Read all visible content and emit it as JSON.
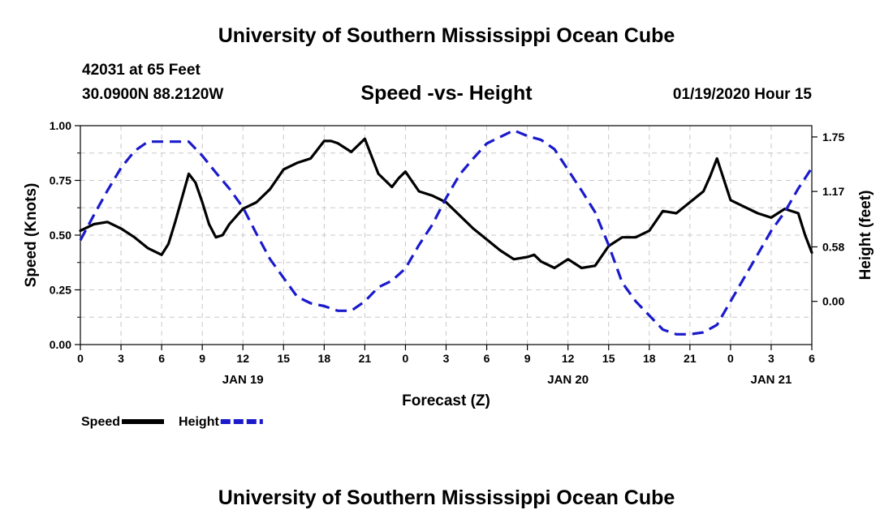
{
  "header": {
    "title": "University of Southern Mississippi Ocean Cube",
    "station": "42031 at 65 Feet",
    "coordinates": "30.0900N 88.2120W",
    "subtitle": "Speed -vs- Height",
    "datetime": "01/19/2020 Hour 15"
  },
  "footer": {
    "title": "University of Southern Mississippi Ocean Cube"
  },
  "chart_data": {
    "type": "line",
    "title": "Speed -vs- Height",
    "xlabel": "Forecast (Z)",
    "ylabel_left": "Speed (Knots)",
    "ylabel_right": "Height (feet)",
    "x_range": [
      0,
      54
    ],
    "ylim_left": [
      0,
      1.0
    ],
    "ylim_right": [
      -0.46,
      1.87
    ],
    "left_ticks": [
      "0.00",
      "0.25",
      "0.50",
      "0.75",
      "1.00"
    ],
    "right_ticks": [
      {
        "value": 0.0,
        "label": "0.00"
      },
      {
        "value": 0.58,
        "label": "0.58"
      },
      {
        "value": 1.17,
        "label": "1.17"
      },
      {
        "value": 1.75,
        "label": "1.75"
      }
    ],
    "x_tick_labels": [
      "0",
      "3",
      "6",
      "9",
      "12",
      "15",
      "18",
      "21",
      "0",
      "3",
      "6",
      "9",
      "12",
      "15",
      "18",
      "21",
      "0",
      "3",
      "6"
    ],
    "date_labels": [
      {
        "label": "JAN 19",
        "hour": 12
      },
      {
        "label": "JAN 20",
        "hour": 36
      },
      {
        "label": "JAN 21",
        "hour": 51
      }
    ],
    "grid": true,
    "legend_position": "bottom-left",
    "series": [
      {
        "name": "Speed",
        "axis": "left",
        "color": "#000000",
        "style": "solid",
        "x": [
          0,
          1,
          2,
          3,
          4,
          5,
          6,
          6.5,
          7,
          8,
          8.5,
          9,
          9.5,
          10,
          10.5,
          11,
          12,
          13,
          14,
          15,
          16,
          17,
          18,
          18.5,
          19,
          20,
          21,
          22,
          23,
          23.5,
          24,
          25,
          26,
          27,
          28,
          29,
          30,
          31,
          32,
          33,
          33.5,
          34,
          35,
          36,
          37,
          38,
          39,
          40,
          41,
          42,
          43,
          44,
          45,
          46,
          46.5,
          47,
          48,
          49,
          50,
          51,
          52,
          53,
          53.5,
          54
        ],
        "y": [
          0.52,
          0.55,
          0.56,
          0.53,
          0.49,
          0.44,
          0.41,
          0.46,
          0.56,
          0.78,
          0.74,
          0.65,
          0.55,
          0.49,
          0.5,
          0.55,
          0.62,
          0.65,
          0.71,
          0.8,
          0.83,
          0.85,
          0.93,
          0.93,
          0.92,
          0.88,
          0.94,
          0.78,
          0.72,
          0.76,
          0.79,
          0.7,
          0.68,
          0.65,
          0.59,
          0.53,
          0.48,
          0.43,
          0.39,
          0.4,
          0.41,
          0.38,
          0.35,
          0.39,
          0.35,
          0.36,
          0.45,
          0.49,
          0.49,
          0.52,
          0.61,
          0.6,
          0.65,
          0.7,
          0.77,
          0.85,
          0.66,
          0.63,
          0.6,
          0.58,
          0.62,
          0.6,
          0.5,
          0.42
        ]
      },
      {
        "name": "Height",
        "axis": "right",
        "color": "#1a1acc",
        "style": "dashed",
        "x": [
          0,
          1,
          2,
          3,
          4,
          5,
          6,
          7,
          8,
          9,
          10,
          11,
          12,
          13,
          14,
          15,
          16,
          17,
          18,
          19,
          20,
          21,
          22,
          23,
          24,
          25,
          26,
          27,
          28,
          29,
          30,
          31,
          32,
          33,
          34,
          35,
          36,
          37,
          38,
          39,
          40,
          41,
          42,
          43,
          44,
          45,
          46,
          47,
          48,
          49,
          50,
          51,
          52,
          53,
          54
        ],
        "y": [
          0.65,
          0.92,
          1.18,
          1.42,
          1.6,
          1.7,
          1.7,
          1.7,
          1.7,
          1.55,
          1.37,
          1.2,
          1.0,
          0.72,
          0.45,
          0.25,
          0.05,
          -0.02,
          -0.05,
          -0.1,
          -0.1,
          0.0,
          0.15,
          0.22,
          0.35,
          0.6,
          0.82,
          1.1,
          1.35,
          1.52,
          1.68,
          1.75,
          1.82,
          1.76,
          1.72,
          1.62,
          1.4,
          1.18,
          0.95,
          0.6,
          0.2,
          0.0,
          -0.15,
          -0.3,
          -0.35,
          -0.35,
          -0.33,
          -0.25,
          0.0,
          0.25,
          0.5,
          0.75,
          0.95,
          1.2,
          1.42
        ]
      }
    ]
  }
}
